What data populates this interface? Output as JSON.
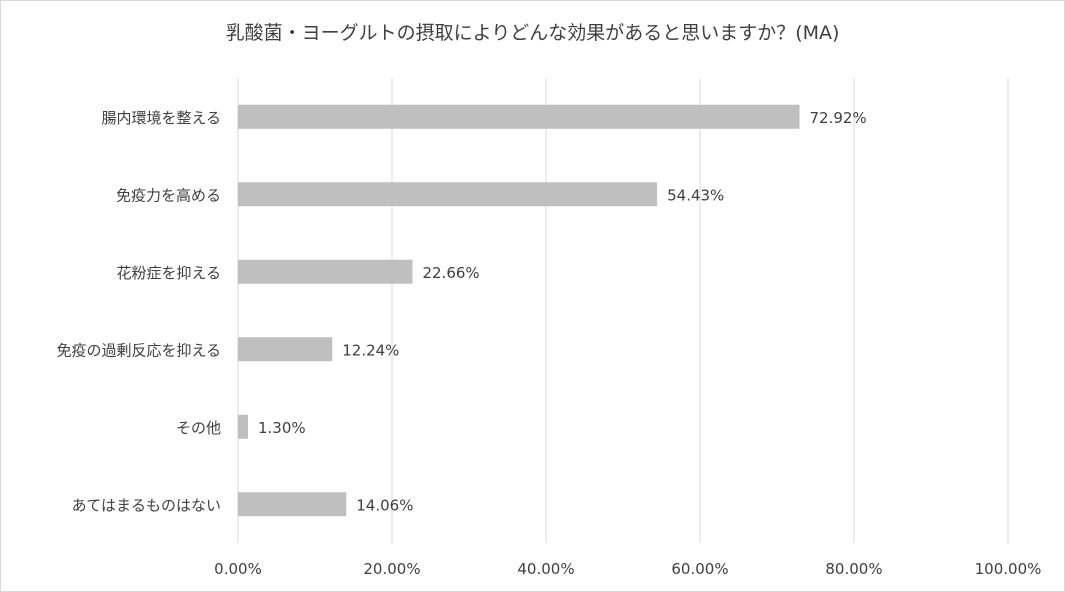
{
  "chart_data": {
    "type": "bar",
    "orientation": "horizontal",
    "title": "乳酸菌・ヨーグルトの摂取によりどんな効果があると思いますか？(MA)",
    "categories": [
      "腸内環境を整える",
      "免疫力を高める",
      "花粉症を抑える",
      "免疫の過剰反応を抑える",
      "その他",
      "あてはまるものはない"
    ],
    "values": [
      72.92,
      54.43,
      22.66,
      12.24,
      1.3,
      14.06
    ],
    "value_labels": [
      "72.92%",
      "54.43%",
      "22.66%",
      "12.24%",
      "1.30%",
      "14.06%"
    ],
    "xlim": [
      0,
      100
    ],
    "xticks": [
      "0.00%",
      "20.00%",
      "40.00%",
      "60.00%",
      "80.00%",
      "100.00%"
    ],
    "grid": true,
    "bar_color": "#bfbfbf",
    "grid_color": "#d9d9d9"
  }
}
